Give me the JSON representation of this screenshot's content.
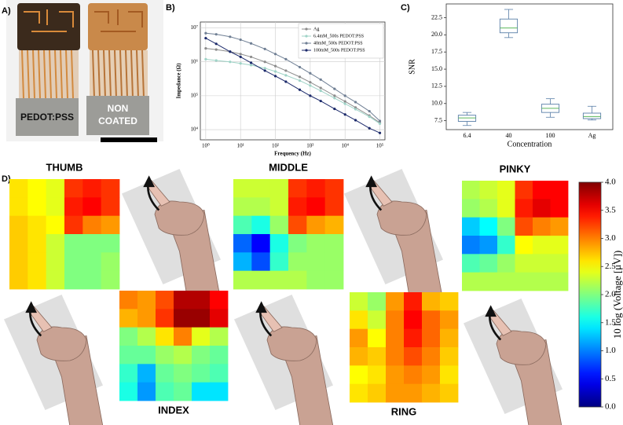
{
  "figure": {
    "panel_labels": [
      "A)",
      "B)",
      "C)",
      "D)"
    ],
    "photo_labels": [
      [
        "PEDOT:PSS"
      ],
      [
        "NON",
        "COATED"
      ]
    ]
  },
  "chart_data": [
    {
      "type": "line",
      "xlabel": "Frequency (Hz)",
      "ylabel": "Impedance (Ω)",
      "log_x": true,
      "log_y": true,
      "grid": true,
      "legend": "upper right",
      "x": [
        1,
        2,
        5,
        10,
        20,
        50,
        100,
        200,
        500,
        1000,
        2000,
        5000,
        10000,
        20000,
        50000,
        100000
      ],
      "xlim": [
        0.7,
        140000
      ],
      "xticks": [
        {
          "value": 1,
          "label": "10⁰"
        },
        {
          "value": 10,
          "label": "10¹"
        },
        {
          "value": 100,
          "label": "10²"
        },
        {
          "value": 1000,
          "label": "10³"
        },
        {
          "value": 10000,
          "label": "10⁴"
        },
        {
          "value": 100000,
          "label": "10⁵"
        }
      ],
      "ylim": [
        5000,
        15000000
      ],
      "yticks": [
        {
          "value": 10000,
          "label": "10⁴"
        },
        {
          "value": 100000,
          "label": "10⁵"
        },
        {
          "value": 1000000,
          "label": "10⁶"
        },
        {
          "value": 10000000,
          "label": "10⁷"
        }
      ],
      "series": [
        {
          "name": "Ag",
          "color": "#8c8c8c",
          "values": [
            2500000,
            2300000,
            2000000,
            1700000,
            1400000,
            1000000,
            750000,
            550000,
            360000,
            250000,
            170000,
            100000,
            68000,
            45000,
            26000,
            16000
          ]
        },
        {
          "name": "6.4mM_500s PEDOT:PSS",
          "color": "#9fd3c7",
          "values": [
            1200000,
            1100000,
            1000000,
            900000,
            800000,
            650000,
            520000,
            400000,
            280000,
            200000,
            140000,
            85000,
            58000,
            40000,
            24000,
            15000
          ]
        },
        {
          "name": "40mM_500s PEDOT:PSS",
          "color": "#6f7f94",
          "values": [
            7000000,
            6500000,
            5500000,
            4500000,
            3500000,
            2400000,
            1700000,
            1200000,
            700000,
            460000,
            300000,
            160000,
            100000,
            65000,
            35000,
            18000
          ]
        },
        {
          "name": "100mM_500s PEDOT:PSS",
          "color": "#1c2a6b",
          "values": [
            5000000,
            3400000,
            2000000,
            1400000,
            940000,
            550000,
            380000,
            260000,
            150000,
            100000,
            70000,
            41000,
            28000,
            19000,
            11000,
            8000
          ]
        }
      ]
    },
    {
      "type": "box",
      "xlabel": "Concentration",
      "ylabel": "SNR",
      "categories": [
        "6.4",
        "40",
        "100",
        "Ag"
      ],
      "box_color": "#5a7fa8",
      "median_color": "#5cb85c",
      "ylim": [
        6.2,
        24.5
      ],
      "yticks": [
        7.5,
        {
          "value": 10,
          "label": "10.0"
        },
        12.5,
        {
          "value": 15,
          "label": "15.0"
        },
        17.5,
        {
          "value": 20,
          "label": "20.0"
        },
        22.5
      ],
      "boxes": [
        {
          "min": 6.8,
          "q1": 7.4,
          "median": 7.9,
          "q3": 8.3,
          "max": 8.7
        },
        {
          "min": 19.6,
          "q1": 20.3,
          "median": 21.0,
          "q3": 22.3,
          "max": 23.7
        },
        {
          "min": 8.0,
          "q1": 8.7,
          "median": 9.3,
          "q3": 9.9,
          "max": 10.7
        },
        {
          "min": 7.6,
          "q1": 7.8,
          "median": 8.1,
          "q3": 8.6,
          "max": 9.6
        }
      ]
    },
    {
      "type": "heatmap",
      "title": "THUMB",
      "z": [
        [
          2.6,
          2.5,
          2.4,
          3.3,
          3.4,
          3.3
        ],
        [
          2.6,
          2.5,
          2.4,
          3.4,
          3.5,
          3.3
        ],
        [
          2.7,
          2.6,
          2.5,
          3.3,
          3.0,
          2.9
        ],
        [
          2.7,
          2.6,
          2.3,
          2.0,
          2.0,
          2.0
        ],
        [
          2.7,
          2.6,
          2.3,
          2.0,
          2.0,
          2.1
        ],
        [
          2.7,
          2.6,
          2.3,
          2.0,
          2.0,
          2.1
        ]
      ]
    },
    {
      "type": "heatmap",
      "title": "MIDDLE",
      "z": [
        [
          2.3,
          2.3,
          2.3,
          3.3,
          3.4,
          3.3
        ],
        [
          2.2,
          2.2,
          2.3,
          3.4,
          3.5,
          3.3
        ],
        [
          1.8,
          1.6,
          2.1,
          3.2,
          2.9,
          2.8
        ],
        [
          0.9,
          0.5,
          1.6,
          2.0,
          2.1,
          2.1
        ],
        [
          1.2,
          0.8,
          1.7,
          2.1,
          2.1,
          2.1
        ],
        [
          2.2,
          2.2,
          2.2,
          2.2,
          2.1,
          2.1
        ]
      ]
    },
    {
      "type": "heatmap",
      "title": "PINKY",
      "z": [
        [
          2.2,
          2.3,
          2.4,
          3.3,
          3.5,
          3.5
        ],
        [
          2.1,
          2.2,
          2.4,
          3.4,
          3.6,
          3.5
        ],
        [
          1.3,
          1.5,
          2.0,
          3.2,
          3.0,
          2.9
        ],
        [
          1.0,
          1.1,
          1.7,
          2.5,
          2.4,
          2.4
        ],
        [
          1.8,
          1.9,
          2.1,
          2.3,
          2.3,
          2.3
        ],
        [
          2.2,
          2.2,
          2.2,
          2.2,
          2.2,
          2.2
        ]
      ]
    },
    {
      "type": "heatmap",
      "title": "INDEX",
      "z": [
        [
          3.0,
          2.9,
          3.2,
          3.8,
          3.8,
          3.5
        ],
        [
          2.8,
          2.9,
          3.3,
          3.9,
          3.9,
          3.6
        ],
        [
          2.0,
          2.2,
          2.6,
          3.0,
          2.4,
          2.2
        ],
        [
          1.9,
          1.9,
          2.1,
          2.2,
          2.0,
          1.9
        ],
        [
          1.7,
          1.2,
          1.9,
          2.0,
          1.9,
          1.8
        ],
        [
          1.6,
          1.1,
          1.8,
          1.9,
          1.4,
          1.4
        ]
      ]
    },
    {
      "type": "heatmap",
      "title": "RING",
      "z": [
        [
          2.3,
          2.1,
          2.9,
          3.4,
          2.8,
          2.7
        ],
        [
          2.6,
          2.3,
          3.0,
          3.5,
          3.1,
          2.9
        ],
        [
          2.9,
          2.5,
          3.0,
          3.4,
          3.1,
          2.8
        ],
        [
          2.8,
          2.7,
          3.0,
          3.2,
          3.0,
          2.7
        ],
        [
          2.5,
          2.6,
          2.9,
          3.0,
          2.9,
          2.6
        ],
        [
          2.6,
          2.7,
          2.9,
          2.9,
          2.8,
          2.7
        ]
      ]
    },
    {
      "type": "colorbar",
      "label": "10 log (Voltage [μV])",
      "colormap": "jet",
      "zlim": [
        0,
        4
      ],
      "ticks": [
        {
          "value": 0,
          "label": "0.0"
        },
        {
          "value": 0.5,
          "label": "0.5"
        },
        {
          "value": 1,
          "label": "1.0"
        },
        {
          "value": 1.5,
          "label": "1.5"
        },
        {
          "value": 2,
          "label": "2.0"
        },
        {
          "value": 2.5,
          "label": "2.5"
        },
        {
          "value": 3,
          "label": "3.0"
        },
        {
          "value": 3.5,
          "label": "3.5"
        },
        {
          "value": 4,
          "label": "4.0"
        }
      ]
    }
  ]
}
